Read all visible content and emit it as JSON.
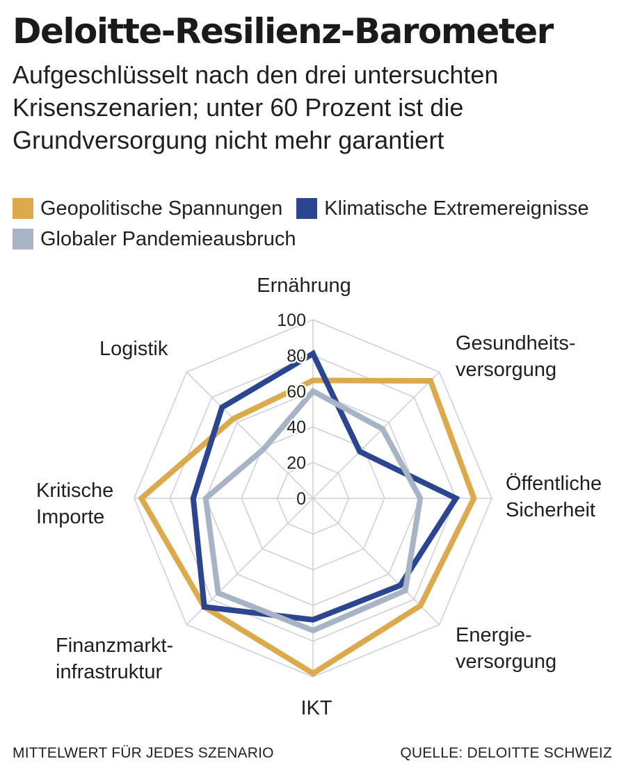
{
  "title": "Deloitte-Resilienz-Barometer",
  "subtitle": "Aufgeschlüsselt nach den drei untersuchten Krisenszenarien; unter 60 Prozent ist die Grundversorgung nicht mehr garantiert",
  "footer": {
    "note": "MITTELWERT FÜR JEDES SZENARIO",
    "source": "QUELLE: DELOITTE SCHWEIZ"
  },
  "chart_data": {
    "type": "radar",
    "categories": [
      [
        "Ernährung"
      ],
      [
        "Gesundheits-",
        "versorgung"
      ],
      [
        "Öffentliche",
        "Sicherheit"
      ],
      [
        "Energie-",
        "versorgung"
      ],
      [
        "IKT"
      ],
      [
        "Finanzmarkt-",
        "infrastruktur"
      ],
      [
        "Kritische",
        "Importe"
      ],
      [
        "Logistik"
      ]
    ],
    "rlim": [
      0,
      100
    ],
    "ticks": [
      "0",
      "20",
      "40",
      "60",
      "80",
      "100"
    ],
    "grid": true,
    "legend_position": "top-left",
    "series": [
      {
        "name": "Geopolitische Spannungen",
        "color": "#dcaa4d",
        "values": [
          66,
          93,
          90,
          85,
          98,
          86,
          96,
          63
        ]
      },
      {
        "name": "Klimatische Extremereignisse",
        "color": "#2b4590",
        "values": [
          81,
          37,
          80,
          69,
          68,
          86,
          67,
          72
        ]
      },
      {
        "name": "Globaler Pandemieausbruch",
        "color": "#a7b4c6",
        "values": [
          60,
          55,
          60,
          73,
          74,
          75,
          60,
          39
        ]
      }
    ]
  }
}
